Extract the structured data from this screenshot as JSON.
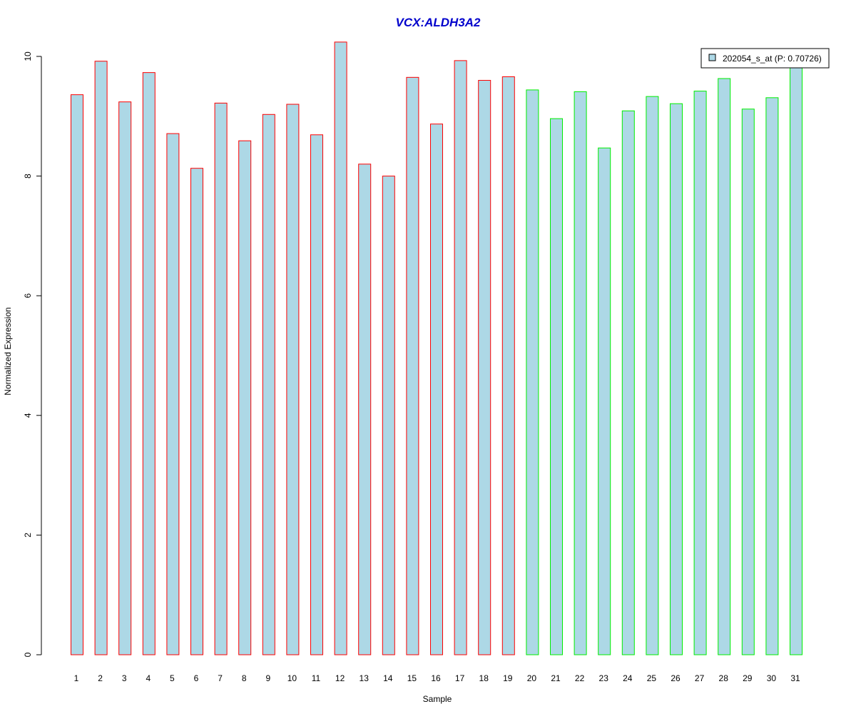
{
  "chart_data": {
    "type": "bar",
    "title": "VCX:ALDH3A2",
    "xlabel": "Sample",
    "ylabel": "Normalized Expression",
    "ylim": [
      0,
      10
    ],
    "yticks": [
      0,
      2,
      4,
      6,
      8,
      10
    ],
    "categories": [
      "1",
      "2",
      "3",
      "4",
      "5",
      "6",
      "7",
      "8",
      "9",
      "10",
      "11",
      "12",
      "13",
      "14",
      "15",
      "16",
      "17",
      "18",
      "19",
      "20",
      "21",
      "22",
      "23",
      "24",
      "25",
      "26",
      "27",
      "28",
      "29",
      "30",
      "31"
    ],
    "values": [
      9.36,
      9.92,
      9.24,
      9.73,
      8.71,
      8.13,
      9.22,
      8.59,
      9.03,
      9.2,
      8.69,
      10.24,
      8.2,
      8.0,
      9.65,
      8.87,
      9.93,
      9.6,
      9.66,
      9.44,
      8.96,
      9.41,
      8.47,
      9.09,
      9.33,
      9.21,
      9.42,
      9.63,
      9.12,
      9.31,
      9.85
    ],
    "groups": [
      1,
      1,
      1,
      1,
      1,
      1,
      1,
      1,
      1,
      1,
      1,
      1,
      1,
      1,
      1,
      1,
      1,
      1,
      1,
      2,
      2,
      2,
      2,
      2,
      2,
      2,
      2,
      2,
      2,
      2,
      2
    ],
    "legend": {
      "label": "202054_s_at (P: 0.70726)",
      "position": "top-right"
    },
    "colors": {
      "title": "#0000cc",
      "bar_fill": "#add8e6",
      "group1_border": "#ff0000",
      "group2_border": "#00ee00",
      "axis": "#000000"
    },
    "grid": false
  }
}
